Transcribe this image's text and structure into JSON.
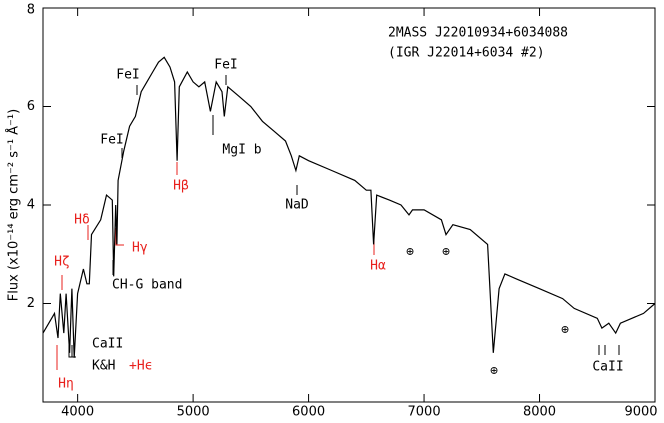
{
  "chart_data": {
    "type": "line",
    "ylabel": "Flux (x10⁻¹⁴ erg cm⁻² s⁻¹ Å⁻¹)",
    "xlim": [
      3700,
      9000
    ],
    "ylim": [
      0,
      8
    ],
    "xticks": [
      4000,
      5000,
      6000,
      7000,
      8000,
      9000
    ],
    "yticks": [
      2,
      4,
      6,
      8
    ],
    "series": [
      {
        "color": "#000000",
        "x": [
          3700,
          3750,
          3800,
          3830,
          3850,
          3880,
          3900,
          3930,
          3950,
          3970,
          4000,
          4050,
          4080,
          4101,
          4120,
          4200,
          4250,
          4300,
          4312,
          4330,
          4340,
          4350,
          4400,
          4450,
          4500,
          4550,
          4600,
          4650,
          4700,
          4750,
          4800,
          4840,
          4861,
          4880,
          4950,
          5000,
          5050,
          5100,
          5150,
          5200,
          5250,
          5270,
          5300,
          5400,
          5500,
          5600,
          5700,
          5800,
          5850,
          5890,
          5920,
          6000,
          6200,
          6400,
          6500,
          6540,
          6563,
          6590,
          6700,
          6800,
          6870,
          6900,
          7000,
          7150,
          7190,
          7250,
          7400,
          7550,
          7600,
          7650,
          7700,
          7800,
          8000,
          8200,
          8300,
          8500,
          8540,
          8600,
          8660,
          8700,
          8800,
          8900,
          9000
        ],
        "values": [
          1.4,
          1.6,
          1.8,
          1.3,
          2.2,
          1.4,
          2.2,
          1.0,
          2.3,
          0.9,
          2.2,
          2.7,
          2.4,
          2.4,
          3.4,
          3.7,
          4.2,
          4.1,
          2.55,
          4.0,
          3.2,
          4.5,
          5.1,
          5.6,
          5.8,
          6.3,
          6.5,
          6.7,
          6.9,
          7.0,
          6.8,
          6.5,
          4.9,
          6.4,
          6.7,
          6.5,
          6.4,
          6.5,
          5.9,
          6.5,
          6.3,
          5.8,
          6.4,
          6.2,
          6.0,
          5.7,
          5.5,
          5.3,
          5.0,
          4.7,
          5.0,
          4.9,
          4.7,
          4.5,
          4.3,
          4.3,
          3.2,
          4.2,
          4.1,
          4.0,
          3.8,
          3.9,
          3.9,
          3.7,
          3.4,
          3.6,
          3.5,
          3.2,
          1.0,
          2.3,
          2.6,
          2.5,
          2.3,
          2.1,
          1.9,
          1.7,
          1.5,
          1.6,
          1.4,
          1.6,
          1.7,
          1.8,
          2.0
        ]
      }
    ],
    "annotations": [
      {
        "text": "2MASS J22010934+6034088",
        "color": "#000000"
      },
      {
        "text": "(IGR J22014+6034 #2)",
        "color": "#000000"
      },
      {
        "text": "FeI",
        "color": "#000000"
      },
      {
        "text": "FeI",
        "color": "#000000"
      },
      {
        "text": "FeI",
        "color": "#000000"
      },
      {
        "text": "MgI b",
        "color": "#000000"
      },
      {
        "text": "NaD",
        "color": "#000000"
      },
      {
        "text": "Hβ",
        "color": "#e8201c"
      },
      {
        "text": "Hα",
        "color": "#e8201c"
      },
      {
        "text": "Hγ",
        "color": "#e8201c"
      },
      {
        "text": "Hδ",
        "color": "#e8201c"
      },
      {
        "text": "Hζ",
        "color": "#e8201c"
      },
      {
        "text": "Hη",
        "color": "#e8201c"
      },
      {
        "text": "CH-G band",
        "color": "#000000"
      },
      {
        "text": "CaII",
        "color": "#000000"
      },
      {
        "text": "K&H",
        "color": "#000000"
      },
      {
        "text": "+Hϵ",
        "color": "#e8201c"
      },
      {
        "text": "CaII",
        "color": "#000000"
      },
      {
        "text": "⊕",
        "color": "#000000"
      },
      {
        "text": "⊕",
        "color": "#000000"
      },
      {
        "text": "⊕",
        "color": "#000000"
      },
      {
        "text": "⊕",
        "color": "#000000"
      }
    ]
  }
}
